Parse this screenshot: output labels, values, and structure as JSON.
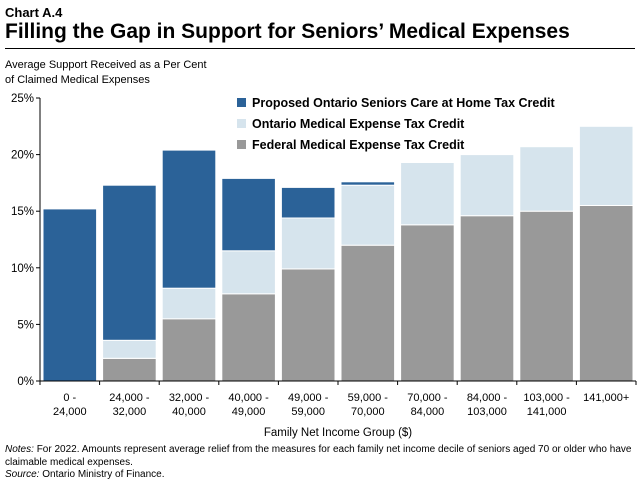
{
  "header": {
    "chart_label": "Chart A.4",
    "title": "Filling the Gap in Support for Seniors’ Medical Expenses"
  },
  "y_caption_lines": [
    "Average Support Received as a Per Cent",
    "of Claimed Medical Expenses"
  ],
  "notes": {
    "notes_label": "Notes:",
    "notes_text": "For 2022. Amounts represent average relief from the measures for each family net income decile of seniors aged 70 or older who have claimable medical expenses.",
    "source_label": "Source:",
    "source_text": "Ontario Ministry of Finance."
  },
  "chart_data": {
    "type": "bar",
    "stacked": true,
    "categories": [
      [
        "0 -",
        "24,000"
      ],
      [
        "24,000 -",
        "32,000"
      ],
      [
        "32,000 -",
        "40,000"
      ],
      [
        "40,000 -",
        "49,000"
      ],
      [
        "49,000 -",
        "59,000"
      ],
      [
        "59,000 -",
        "70,000"
      ],
      [
        "70,000 -",
        "84,000"
      ],
      [
        "84,000 -",
        "103,000"
      ],
      [
        "103,000 -",
        "141,000"
      ],
      [
        "141,000+"
      ]
    ],
    "series": [
      {
        "name": "Federal Medical Expense Tax Credit",
        "color": "#999999",
        "values": [
          0,
          2.0,
          5.5,
          7.7,
          9.9,
          12.0,
          13.8,
          14.6,
          15.0,
          15.5
        ]
      },
      {
        "name": "Ontario Medical Expense Tax Credit",
        "color": "#d6e4ed",
        "values": [
          0,
          1.6,
          2.7,
          3.8,
          4.5,
          5.3,
          5.5,
          5.4,
          5.7,
          7.0
        ]
      },
      {
        "name": "Proposed Ontario Seniors Care at Home Tax Credit",
        "color": "#2b6298",
        "values": [
          15.2,
          13.7,
          12.2,
          6.4,
          2.7,
          0.3,
          0,
          0,
          0,
          0
        ]
      }
    ],
    "legend_order": [
      2,
      1,
      0
    ],
    "legend_position": "top-right",
    "xlabel": "Family Net Income Group ($)",
    "ylabel": "",
    "yticks": [
      "0%",
      "5%",
      "10%",
      "15%",
      "20%",
      "25%"
    ],
    "ylim": [
      0,
      25
    ],
    "grid": false
  }
}
